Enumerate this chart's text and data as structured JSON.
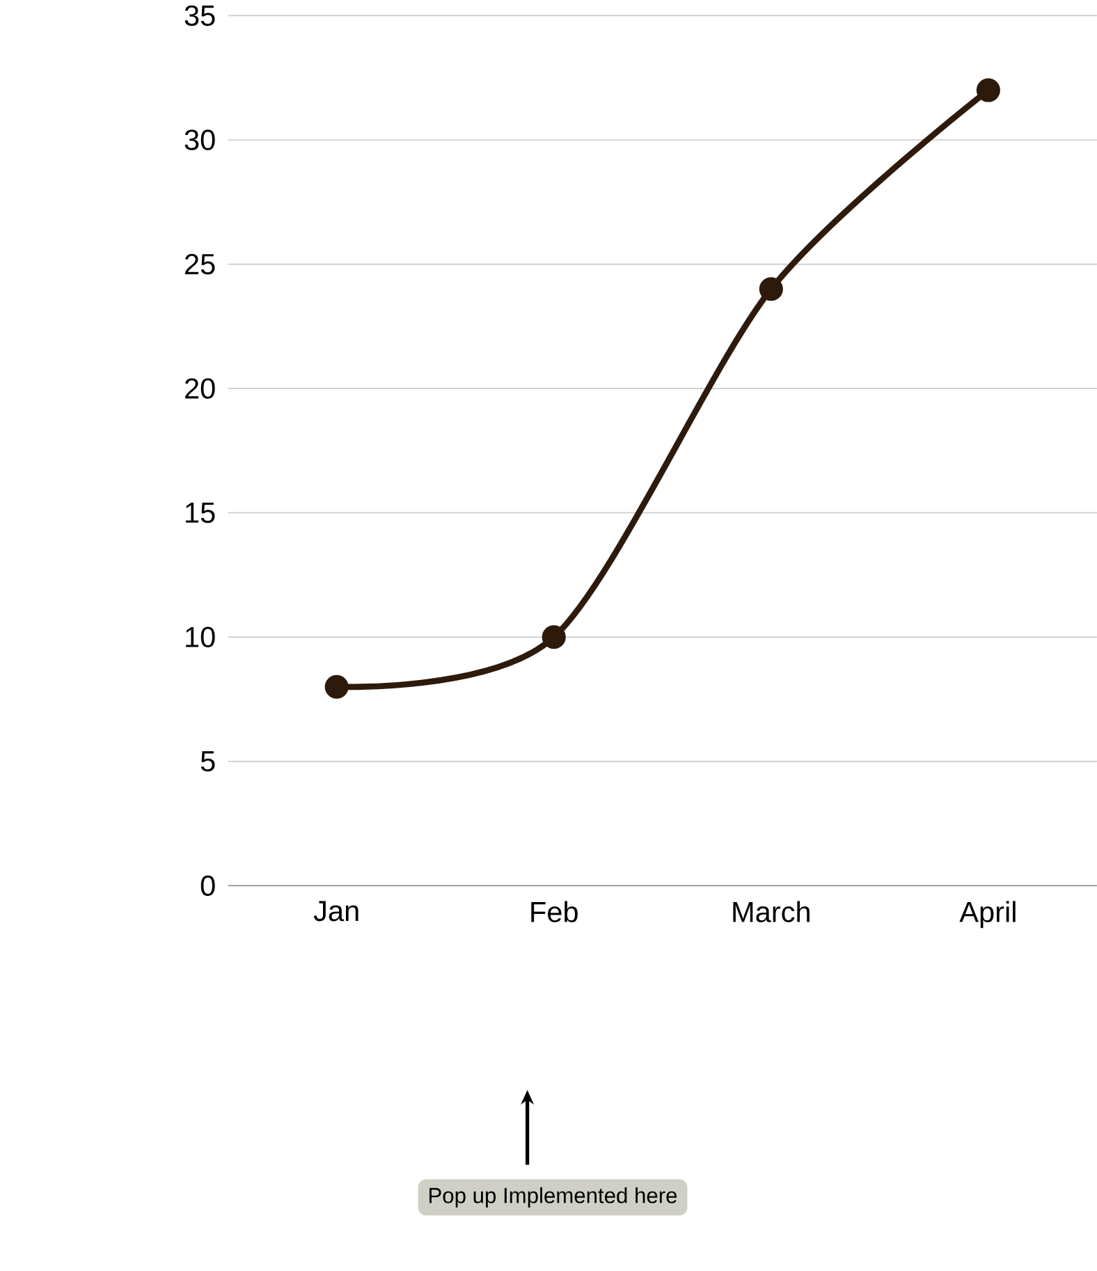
{
  "chart_data": {
    "type": "line",
    "categories": [
      "Jan",
      "Feb",
      "March",
      "April"
    ],
    "values": [
      8,
      10,
      24,
      32
    ],
    "color": "#2e1a0b",
    "marker": "circle",
    "ylim": [
      0,
      35
    ],
    "yticks": [
      0,
      5,
      10,
      15,
      20,
      25,
      30,
      35
    ],
    "grid": "y",
    "annotations": [
      "Pop up Implemented here"
    ]
  }
}
